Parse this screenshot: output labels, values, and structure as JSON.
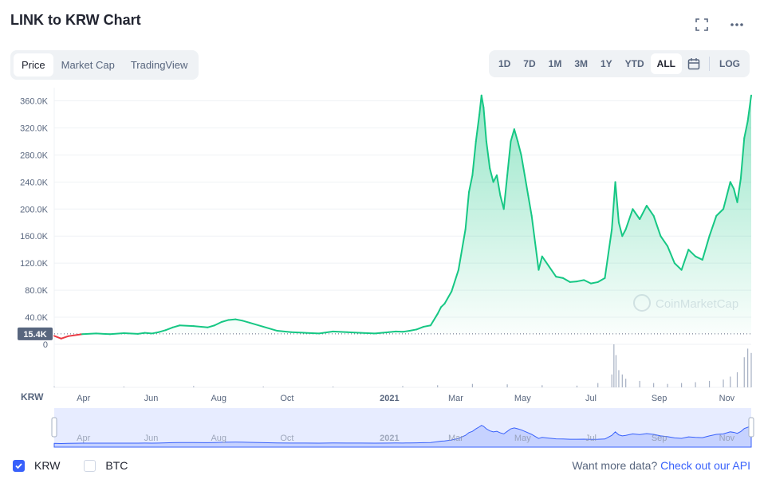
{
  "header": {
    "title": "LINK to KRW Chart"
  },
  "icons": {
    "fullscreen": "fullscreen-icon",
    "more": "more-icon",
    "calendar": "calendar-icon",
    "check": "check-icon"
  },
  "tabs": [
    {
      "label": "Price",
      "active": true
    },
    {
      "label": "Market Cap",
      "active": false
    },
    {
      "label": "TradingView",
      "active": false
    }
  ],
  "ranges": [
    {
      "label": "1D"
    },
    {
      "label": "7D"
    },
    {
      "label": "1M"
    },
    {
      "label": "3M"
    },
    {
      "label": "1Y"
    },
    {
      "label": "YTD"
    },
    {
      "label": "ALL",
      "active": true
    }
  ],
  "log_label": "LOG",
  "legend": {
    "krw": "KRW",
    "btc": "BTC",
    "krw_checked": true,
    "btc_checked": false
  },
  "footer": {
    "prompt": "Want more data? ",
    "link": "Check out our API"
  },
  "colors": {
    "up": "#16c784",
    "down": "#ea3943",
    "accent": "#3861fb",
    "grid": "#eff2f5",
    "nav": "#dde4ff"
  },
  "chart_data": {
    "type": "area",
    "currency_label": "KRW",
    "watermark": "CoinMarketCap",
    "baseline_label": "15.4K",
    "baseline_value": 15400,
    "y_ticks": [
      "360.0K",
      "320.0K",
      "280.0K",
      "240.0K",
      "200.0K",
      "160.0K",
      "120.0K",
      "80.0K",
      "40.0K",
      "0"
    ],
    "y_tick_values": [
      360000,
      320000,
      280000,
      240000,
      200000,
      160000,
      120000,
      80000,
      40000,
      0
    ],
    "ylim": [
      0,
      370000
    ],
    "x_range": [
      0,
      100
    ],
    "x_ticks": [
      {
        "label": "Apr",
        "x": 4.2,
        "bold": false
      },
      {
        "label": "Jun",
        "x": 13.9,
        "bold": false
      },
      {
        "label": "Aug",
        "x": 23.6,
        "bold": false
      },
      {
        "label": "Oct",
        "x": 33.4,
        "bold": false
      },
      {
        "label": "2021",
        "x": 48.1,
        "bold": true
      },
      {
        "label": "Mar",
        "x": 57.6,
        "bold": false
      },
      {
        "label": "May",
        "x": 67.2,
        "bold": false
      },
      {
        "label": "Jul",
        "x": 77.0,
        "bold": false
      },
      {
        "label": "Sep",
        "x": 86.8,
        "bold": false
      },
      {
        "label": "Nov",
        "x": 96.5,
        "bold": false
      }
    ],
    "series": [
      {
        "x": [
          0,
          1,
          2,
          4,
          6,
          8,
          10,
          12,
          13,
          14,
          15,
          16,
          17,
          18,
          20,
          22,
          23,
          24,
          25,
          26,
          27,
          28,
          30,
          32,
          34,
          36,
          38,
          40,
          42,
          44,
          46,
          48,
          49,
          50,
          51,
          52,
          53,
          54,
          55,
          55.5,
          56,
          57,
          58,
          59,
          59.5,
          60,
          60.5,
          61,
          61.3,
          61.6,
          62,
          62.5,
          63,
          63.5,
          64,
          64.5,
          65,
          65.5,
          66,
          66.5,
          67,
          67.5,
          68,
          68.5,
          69,
          69.5,
          70,
          71,
          72,
          73,
          74,
          75,
          76,
          77,
          78,
          79,
          80,
          80.5,
          81,
          81.5,
          82,
          83,
          84,
          85,
          86,
          87,
          88,
          89,
          90,
          91,
          92,
          93,
          94,
          95,
          96,
          97,
          97.5,
          98,
          98.5,
          99,
          99.5,
          100
        ],
        "values": [
          12500,
          8500,
          12000,
          15000,
          16000,
          15000,
          16500,
          15500,
          17000,
          16000,
          18000,
          21000,
          25000,
          28000,
          27000,
          25000,
          28000,
          33000,
          36000,
          37000,
          35000,
          32000,
          26000,
          20000,
          18000,
          17000,
          16000,
          19000,
          18000,
          17000,
          16000,
          18000,
          19000,
          18500,
          20000,
          22000,
          26000,
          28000,
          45000,
          55000,
          60000,
          78000,
          110000,
          170000,
          225000,
          250000,
          300000,
          340000,
          368000,
          350000,
          300000,
          260000,
          240000,
          250000,
          220000,
          200000,
          250000,
          300000,
          318000,
          300000,
          280000,
          250000,
          220000,
          190000,
          150000,
          110000,
          130000,
          115000,
          100000,
          98000,
          92000,
          93000,
          95000,
          90000,
          92000,
          98000,
          170000,
          240000,
          180000,
          160000,
          170000,
          200000,
          185000,
          205000,
          190000,
          160000,
          145000,
          120000,
          110000,
          140000,
          130000,
          125000,
          160000,
          190000,
          200000,
          240000,
          230000,
          210000,
          245000,
          305000,
          330000,
          368000
        ]
      }
    ],
    "volume": {
      "x": [
        0,
        10,
        20,
        30,
        40,
        50,
        55,
        60,
        65,
        70,
        75,
        78,
        80,
        80.3,
        80.6,
        81,
        81.5,
        82,
        84,
        86,
        88,
        90,
        92,
        94,
        96,
        97,
        98,
        99,
        99.5,
        100
      ],
      "values": [
        0.02,
        0.02,
        0.03,
        0.02,
        0.02,
        0.03,
        0.05,
        0.08,
        0.07,
        0.05,
        0.04,
        0.1,
        0.3,
        1.0,
        0.75,
        0.4,
        0.3,
        0.2,
        0.15,
        0.1,
        0.08,
        0.1,
        0.12,
        0.15,
        0.18,
        0.25,
        0.35,
        0.7,
        0.9,
        0.8
      ]
    }
  }
}
